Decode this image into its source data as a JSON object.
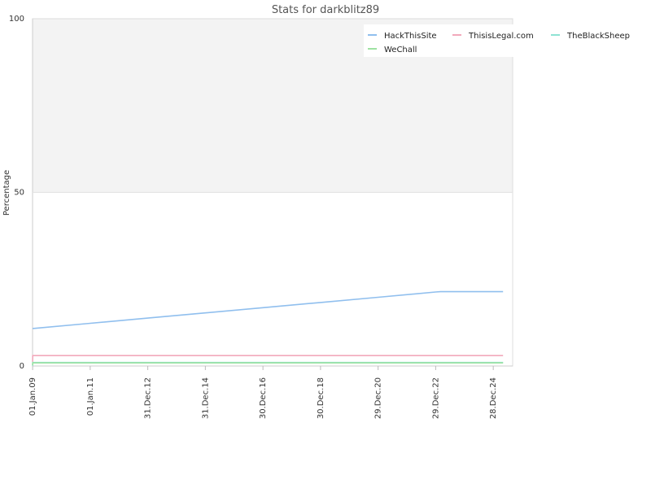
{
  "chart_data": {
    "type": "line",
    "title": "Stats for darkblitz89",
    "ylabel": "Percentage",
    "xlabel": "",
    "ylim": [
      0,
      100
    ],
    "yticks": [
      "0",
      "50",
      "100"
    ],
    "xlim": [
      "2008-12-31",
      "2025-08-31"
    ],
    "xticks": [
      {
        "label": "01.Jan.09",
        "date": "2009-01-01"
      },
      {
        "label": "01.Jan.11",
        "date": "2011-01-01"
      },
      {
        "label": "31.Dec.12",
        "date": "2012-12-31"
      },
      {
        "label": "31.Dec.14",
        "date": "2014-12-31"
      },
      {
        "label": "30.Dec.16",
        "date": "2016-12-30"
      },
      {
        "label": "30.Dec.18",
        "date": "2018-12-30"
      },
      {
        "label": "29.Dec.20",
        "date": "2020-12-29"
      },
      {
        "label": "29.Dec.22",
        "date": "2022-12-29"
      },
      {
        "label": "28.Dec.24",
        "date": "2024-12-28"
      }
    ],
    "legend_position": "top-right",
    "upper_band_shaded": true,
    "series": [
      {
        "name": "HackThisSite",
        "color": "#90bfee",
        "points": [
          [
            "2009-01-01",
            10.8
          ],
          [
            "2011-01-01",
            12.3
          ],
          [
            "2012-12-31",
            13.8
          ],
          [
            "2014-12-31",
            15.3
          ],
          [
            "2016-12-30",
            16.8
          ],
          [
            "2018-12-30",
            18.3
          ],
          [
            "2020-12-29",
            19.8
          ],
          [
            "2022-12-29",
            21.3
          ],
          [
            "2023-03-01",
            21.4
          ],
          [
            "2025-05-01",
            21.4
          ]
        ]
      },
      {
        "name": "ThisisLegal.com",
        "color": "#f2a9bb",
        "points": [
          [
            "2009-01-01",
            1.2
          ],
          [
            "2009-01-02",
            3.0
          ],
          [
            "2025-05-01",
            3.0
          ]
        ]
      },
      {
        "name": "TheBlackSheep",
        "color": "#8fe3d4",
        "points": [
          [
            "2009-01-01",
            0.1
          ],
          [
            "2009-01-02",
            1.0
          ],
          [
            "2025-05-01",
            1.0
          ]
        ]
      },
      {
        "name": "WeChall",
        "color": "#9ee2a2",
        "points": [
          [
            "2009-01-01",
            0.2
          ],
          [
            "2009-01-02",
            0.9
          ],
          [
            "2025-05-01",
            0.9
          ]
        ]
      }
    ]
  }
}
